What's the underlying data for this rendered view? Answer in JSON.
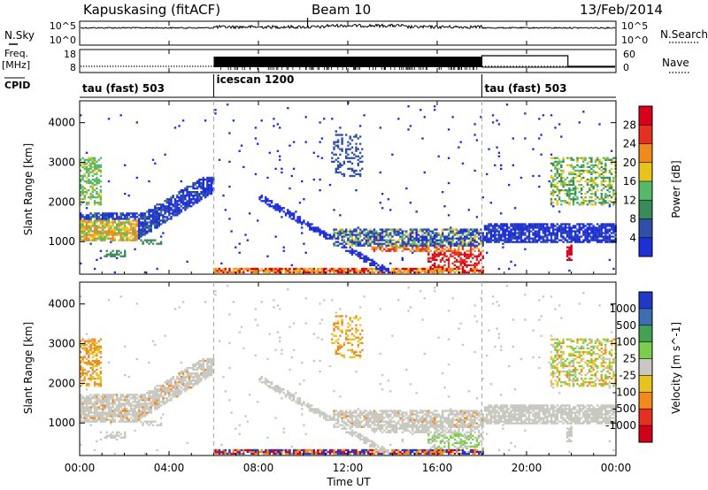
{
  "header": {
    "station": "Kapuskasing (fitACF)",
    "beam": "Beam 10",
    "date": "13/Feb/2014"
  },
  "panels": {
    "nsky_label": "N.Sky",
    "nsearch_label": "N.Search",
    "nsky_ticks": [
      "10^5",
      "10^0"
    ],
    "nsearch_ticks": [
      "10^5",
      "10^0"
    ],
    "freq_label": "Freq.",
    "freq_unit": "[MHz]",
    "freq_ticks": [
      "18",
      "8"
    ],
    "nave_label": "Nave",
    "nave_ticks": [
      "60",
      "0"
    ],
    "cpid_label": "CPID",
    "modes": [
      {
        "name": "tau (fast) 503",
        "start": 0,
        "end": 6
      },
      {
        "name": "icescan 1200",
        "start": 6,
        "end": 18
      },
      {
        "name": "tau (fast) 503",
        "start": 18,
        "end": 24
      }
    ]
  },
  "axes": {
    "x_ticks": [
      "00:00",
      "04:00",
      "08:00",
      "12:00",
      "16:00",
      "20:00",
      "00:00"
    ],
    "x_label": "Time UT",
    "y_label": "Slant Range [km]",
    "y_ticks": [
      "1000",
      "2000",
      "3000",
      "4000"
    ]
  },
  "chart_data": [
    {
      "type": "heatmap",
      "parameter": "Power",
      "unit": "[dB]",
      "colorbar_ticks": [
        "4",
        "8",
        "12",
        "16",
        "20",
        "24",
        "28"
      ],
      "colors": [
        "#1f2fd6",
        "#2f4fa8",
        "#3a8a5a",
        "#55b86a",
        "#e8c21e",
        "#f08a1c",
        "#e33020",
        "#d8001a"
      ],
      "x_range_hours": [
        0,
        24
      ],
      "y_range_km": [
        180,
        4550
      ],
      "vlines_hours": [
        6,
        18
      ]
    },
    {
      "type": "heatmap",
      "parameter": "Velocity",
      "unit": "[m s^-1]",
      "colorbar_ticks": [
        "1000",
        "500",
        "100",
        "25",
        "-25",
        "-100",
        "-500",
        "-1000"
      ],
      "colors": [
        "#2038c8",
        "#3c6fb0",
        "#46a054",
        "#7ccc4e",
        "#c8c8c0",
        "#e8c21e",
        "#f08a1c",
        "#e33020",
        "#d0001a"
      ],
      "x_range_hours": [
        0,
        24
      ],
      "y_range_km": [
        180,
        4550
      ],
      "vlines_hours": [
        6,
        18
      ]
    }
  ]
}
